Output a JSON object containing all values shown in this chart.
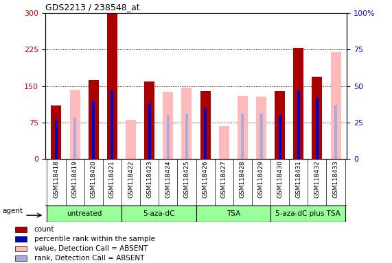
{
  "title": "GDS2213 / 238548_at",
  "samples": [
    "GSM118418",
    "GSM118419",
    "GSM118420",
    "GSM118421",
    "GSM118422",
    "GSM118423",
    "GSM118424",
    "GSM118425",
    "GSM118426",
    "GSM118427",
    "GSM118428",
    "GSM118429",
    "GSM118430",
    "GSM118431",
    "GSM118432",
    "GSM118433"
  ],
  "count": [
    110,
    0,
    163,
    300,
    0,
    160,
    0,
    0,
    140,
    0,
    0,
    0,
    140,
    228,
    170,
    0
  ],
  "value_absent": [
    0,
    143,
    0,
    0,
    80,
    0,
    138,
    147,
    0,
    68,
    130,
    128,
    0,
    0,
    0,
    220
  ],
  "percentile_rank_present": [
    27,
    0,
    40,
    47,
    0,
    38,
    0,
    0,
    35,
    0,
    0,
    0,
    30,
    47,
    42,
    0
  ],
  "percentile_rank_absent": [
    0,
    29,
    0,
    0,
    0,
    0,
    30,
    31,
    0,
    0,
    31,
    31,
    0,
    0,
    0,
    37
  ],
  "groups": [
    {
      "label": "untreated",
      "start": 0,
      "end": 4
    },
    {
      "label": "5-aza-dC",
      "start": 4,
      "end": 8
    },
    {
      "label": "TSA",
      "start": 8,
      "end": 12
    },
    {
      "label": "5-aza-dC plus TSA",
      "start": 12,
      "end": 16
    }
  ],
  "ylim_left": [
    0,
    300
  ],
  "ylim_right": [
    0,
    100
  ],
  "yticks_left": [
    0,
    75,
    150,
    225,
    300
  ],
  "ytick_labels_left": [
    "0",
    "75",
    "150",
    "225",
    "300"
  ],
  "yticks_right": [
    0,
    25,
    50,
    75,
    100
  ],
  "ytick_labels_right": [
    "0",
    "25",
    "50",
    "75",
    "100%"
  ],
  "count_color": "#aa0000",
  "percentile_present_color": "#0000cc",
  "value_absent_color": "#ffbbbb",
  "rank_absent_color": "#aaaadd",
  "bg_color": "#ffffff",
  "xtick_bg_color": "#cccccc",
  "group_color": "#99ff99",
  "grid_color": "black",
  "tick_color_left": "#cc0000",
  "tick_color_right": "#0000cc"
}
